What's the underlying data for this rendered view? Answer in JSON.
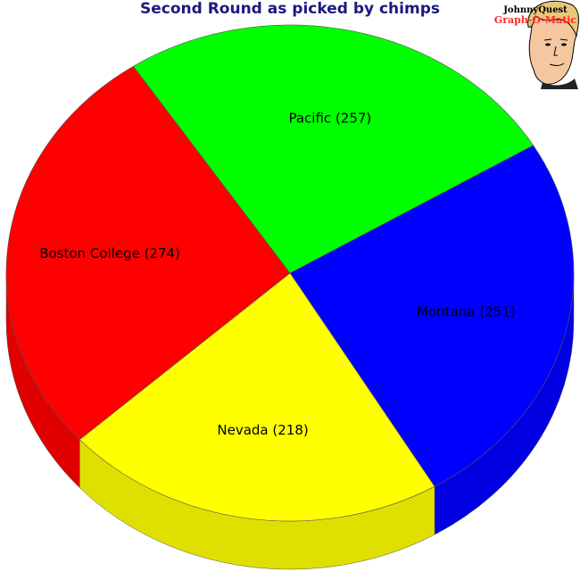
{
  "chart_data": {
    "type": "pie",
    "title": "Second Round as picked by chimps",
    "categories": [
      "Montana",
      "Nevada",
      "Boston College",
      "Pacific"
    ],
    "values": [
      251,
      218,
      274,
      257
    ],
    "labels": [
      "Montana (251)",
      "Nevada (218)",
      "Boston College (274)",
      "Pacific (257)"
    ],
    "colors": [
      "#0000ff",
      "#ffff00",
      "#ff0000",
      "#00ff00"
    ],
    "style": "3d-tilted"
  },
  "logo": {
    "line1": "JohnnyQuest",
    "line2": "Graph-O-Matic"
  }
}
